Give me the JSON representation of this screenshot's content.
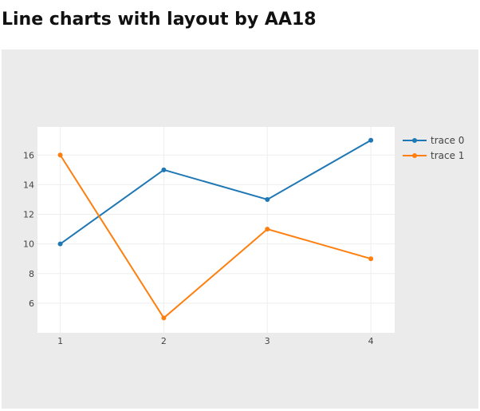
{
  "page": {
    "title": "Line charts with layout by AA18"
  },
  "chart_data": {
    "type": "line",
    "title": "",
    "xlabel": "",
    "ylabel": "",
    "x": [
      1,
      2,
      3,
      4
    ],
    "xlim": [
      0.78,
      4.23
    ],
    "ylim": [
      4.0,
      17.9
    ],
    "xticks": [
      1,
      2,
      3,
      4
    ],
    "yticks": [
      6,
      8,
      10,
      12,
      14,
      16
    ],
    "grid": true,
    "legend_position": "top-right",
    "series": [
      {
        "name": "trace 0",
        "values": [
          10,
          15,
          13,
          17
        ],
        "color": "#1f77b4"
      },
      {
        "name": "trace 1",
        "values": [
          16,
          5,
          11,
          9
        ],
        "color": "#ff7f0e"
      }
    ]
  }
}
